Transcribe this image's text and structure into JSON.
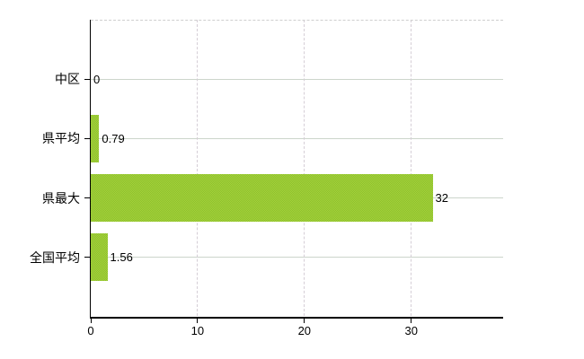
{
  "chart_data": {
    "type": "bar",
    "orientation": "horizontal",
    "title": "",
    "categories": [
      "中区",
      "県平均",
      "県最大",
      "全国平均"
    ],
    "values": [
      0,
      0.79,
      32,
      1.56
    ],
    "data_labels": [
      "0",
      "0.79",
      "32",
      "1.56"
    ],
    "x_ticks": [
      0,
      10,
      20,
      30
    ],
    "x_tick_labels": [
      "0",
      "10",
      "20",
      "30"
    ],
    "xlim": [
      0,
      38.6
    ],
    "grid": true,
    "legend": false,
    "colors": {
      "bar_fill": "#9acd32",
      "bar_dither_light": "#a6d23b",
      "bar_dither_dark": "#8cc02d",
      "h_gridline": "#ccd5cb",
      "v_gridline": "#d5ced6",
      "plot_top_border": "#cfcfcf",
      "axis": "#000000",
      "text": "#000000",
      "background": "#ffffff"
    }
  }
}
